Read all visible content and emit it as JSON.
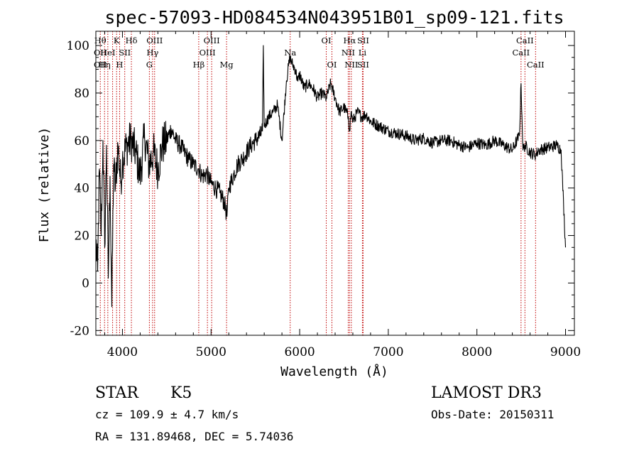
{
  "chart_data": {
    "type": "line",
    "title": "spec-57093-HD084534N043951B01_sp09-121.fits",
    "xlabel": "Wavelength (Å)",
    "ylabel": "Flux (relative)",
    "xlim": [
      3700,
      9100
    ],
    "ylim": [
      -22,
      106
    ],
    "x_ticks": [
      4000,
      5000,
      6000,
      7000,
      8000,
      9000
    ],
    "x_tick_labels": [
      "4000",
      "5000",
      "6000",
      "7000",
      "8000",
      "9000"
    ],
    "y_ticks": [
      -20,
      0,
      20,
      40,
      60,
      80,
      100
    ],
    "y_tick_labels": [
      "-20",
      "0",
      "20",
      "40",
      "60",
      "80",
      "100"
    ],
    "series": [
      {
        "name": "flux",
        "x": [
          3700,
          3720,
          3740,
          3760,
          3780,
          3800,
          3820,
          3840,
          3860,
          3880,
          3900,
          3920,
          3950,
          3980,
          4000,
          4050,
          4100,
          4150,
          4200,
          4250,
          4300,
          4350,
          4400,
          4450,
          4500,
          4550,
          4600,
          4650,
          4700,
          4750,
          4800,
          4860,
          4900,
          4950,
          5000,
          5050,
          5100,
          5150,
          5180,
          5200,
          5250,
          5300,
          5350,
          5400,
          5450,
          5500,
          5550,
          5580,
          5590,
          5600,
          5650,
          5700,
          5750,
          5800,
          5850,
          5890,
          5920,
          5950,
          5980,
          6000,
          6050,
          6100,
          6150,
          6200,
          6250,
          6300,
          6350,
          6400,
          6450,
          6500,
          6550,
          6563,
          6580,
          6600,
          6650,
          6700,
          6750,
          6800,
          6900,
          7000,
          7100,
          7200,
          7300,
          7400,
          7500,
          7600,
          7700,
          7800,
          7900,
          8000,
          8100,
          8200,
          8300,
          8400,
          8450,
          8480,
          8498,
          8520,
          8542,
          8600,
          8662,
          8700,
          8800,
          8900,
          8950,
          9000
        ],
        "values": [
          18,
          5,
          48,
          20,
          60,
          15,
          58,
          2,
          45,
          -10,
          50,
          40,
          58,
          42,
          52,
          58,
          60,
          55,
          45,
          62,
          50,
          55,
          48,
          58,
          60,
          65,
          60,
          58,
          55,
          52,
          50,
          48,
          45,
          46,
          42,
          40,
          38,
          34,
          28,
          40,
          45,
          50,
          52,
          55,
          58,
          60,
          62,
          64,
          100,
          66,
          70,
          72,
          75,
          60,
          85,
          95,
          92,
          90,
          85,
          88,
          82,
          84,
          82,
          78,
          80,
          78,
          84,
          78,
          72,
          74,
          70,
          64,
          72,
          68,
          72,
          70,
          71,
          68,
          66,
          64,
          63,
          62,
          60,
          61,
          59,
          60,
          60,
          58,
          57,
          59,
          58,
          60,
          58,
          56,
          60,
          62,
          84,
          56,
          58,
          55,
          54,
          56,
          57,
          58,
          56,
          15
        ]
      }
    ],
    "line_markers": [
      {
        "wl": 3750,
        "labels": [
          "Hθ",
          "OII",
          "OII"
        ]
      },
      {
        "wl": 3798,
        "labels": [
          "",
          "",
          "Hη"
        ]
      },
      {
        "wl": 3835,
        "labels": [
          "",
          "HeI",
          ""
        ]
      },
      {
        "wl": 3889,
        "labels": [
          "",
          "",
          ""
        ]
      },
      {
        "wl": 3934,
        "labels": [
          "K",
          "",
          ""
        ]
      },
      {
        "wl": 3968,
        "labels": [
          "",
          "",
          "H"
        ]
      },
      {
        "wl": 4026,
        "labels": [
          "",
          "SII",
          ""
        ]
      },
      {
        "wl": 4101,
        "labels": [
          "Hδ",
          "",
          ""
        ]
      },
      {
        "wl": 4304,
        "labels": [
          "",
          "",
          "G"
        ]
      },
      {
        "wl": 4340,
        "labels": [
          "",
          "Hγ",
          ""
        ]
      },
      {
        "wl": 4363,
        "labels": [
          "OIII",
          "",
          ""
        ]
      },
      {
        "wl": 4861,
        "labels": [
          "",
          "",
          "Hβ"
        ]
      },
      {
        "wl": 4959,
        "labels": [
          "",
          "OIII",
          ""
        ]
      },
      {
        "wl": 5007,
        "labels": [
          "OIII",
          "",
          ""
        ]
      },
      {
        "wl": 5175,
        "labels": [
          "",
          "",
          "Mg"
        ]
      },
      {
        "wl": 5893,
        "labels": [
          "",
          "Na",
          ""
        ]
      },
      {
        "wl": 6300,
        "labels": [
          "OI",
          "",
          ""
        ]
      },
      {
        "wl": 6364,
        "labels": [
          "",
          "",
          "OI"
        ]
      },
      {
        "wl": 6548,
        "labels": [
          "",
          "NII",
          ""
        ]
      },
      {
        "wl": 6563,
        "labels": [
          "Hα",
          "",
          ""
        ]
      },
      {
        "wl": 6583,
        "labels": [
          "",
          "",
          "NII"
        ]
      },
      {
        "wl": 6708,
        "labels": [
          "",
          "Li",
          ""
        ]
      },
      {
        "wl": 6716,
        "labels": [
          "SII",
          "",
          "SII"
        ]
      },
      {
        "wl": 8498,
        "labels": [
          "",
          "CaII",
          ""
        ]
      },
      {
        "wl": 8542,
        "labels": [
          "CaII",
          "",
          ""
        ]
      },
      {
        "wl": 8662,
        "labels": [
          "",
          "",
          "CaII"
        ]
      }
    ]
  },
  "info": {
    "class_label": "STAR",
    "subclass": "K5",
    "cz_text": "cz = 109.9 ± 4.7 km/s",
    "radec_text": "RA = 131.89468, DEC =   5.74036",
    "survey": "LAMOST DR3",
    "obs_date": "Obs-Date: 20150311"
  },
  "colors": {
    "axes": "#000000",
    "spectrum": "#000000",
    "marker": "#c00000"
  }
}
